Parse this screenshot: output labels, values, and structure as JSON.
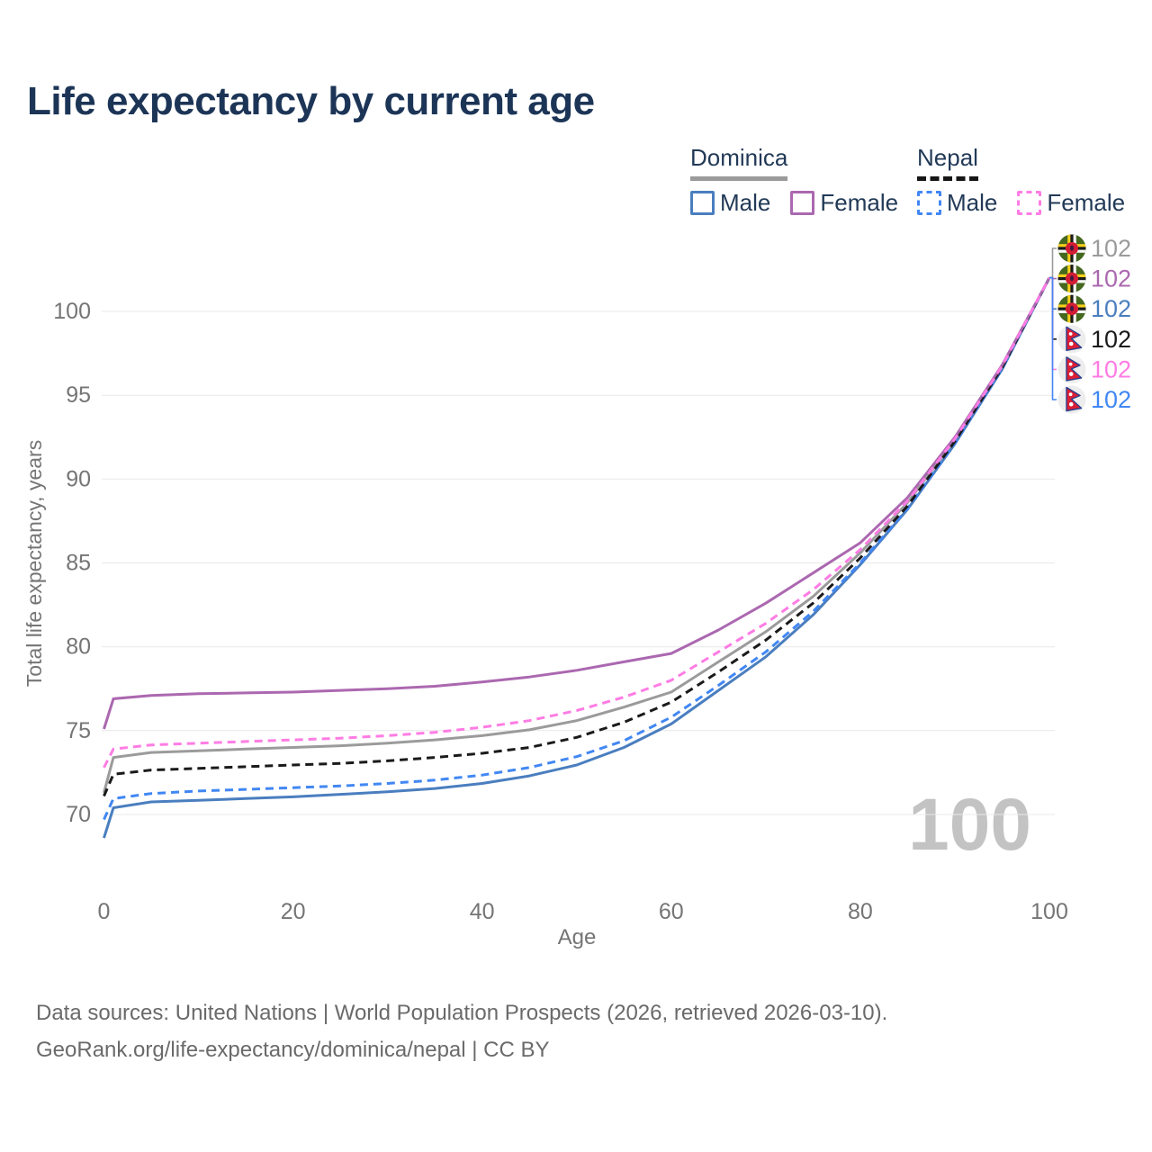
{
  "title": "Life expectancy by current age",
  "watermark": "100",
  "legend": {
    "groups": [
      {
        "id": "dominica",
        "label": "Dominica",
        "line_color": "#9b9b9b",
        "line_style": "solid",
        "items": [
          {
            "id": "dominica-male",
            "label": "Male",
            "color": "#4a7ebf",
            "style": "solid"
          },
          {
            "id": "dominica-female",
            "label": "Female",
            "color": "#ab68b0",
            "style": "solid"
          }
        ]
      },
      {
        "id": "nepal",
        "label": "Nepal",
        "line_color": "#161616",
        "line_style": "dashed",
        "items": [
          {
            "id": "nepal-male",
            "label": "Male",
            "color": "#4187f4",
            "style": "dashed"
          },
          {
            "id": "nepal-female",
            "label": "Female",
            "color": "#ff7ce4",
            "style": "dashed"
          }
        ]
      }
    ]
  },
  "chart_data": {
    "type": "line",
    "title": "Life expectancy by current age",
    "xlabel": "Age",
    "ylabel": "Total life expectancy, years",
    "x_ticks": [
      0,
      20,
      40,
      60,
      80,
      100
    ],
    "y_ticks": [
      70,
      75,
      80,
      85,
      90,
      95,
      100
    ],
    "xlim": [
      0,
      100
    ],
    "ylim": [
      68,
      103
    ],
    "grid": "horizontal",
    "legend_position": "top-right",
    "gridline_color": "#e9e9e9",
    "tick_color": "#757575",
    "watermark_color": "#c3c3c3",
    "ages": [
      0,
      1,
      5,
      10,
      15,
      20,
      25,
      30,
      35,
      40,
      45,
      50,
      55,
      60,
      65,
      70,
      75,
      80,
      85,
      90,
      95,
      100
    ],
    "series": [
      {
        "id": "dominica",
        "label": "Dominica",
        "country": "Dominica",
        "sex": "all",
        "color": "#9b9b9b",
        "dashed": false,
        "flag": "dominica",
        "end_label": "102",
        "row": 0,
        "z": 0,
        "values": [
          71.3,
          73.4,
          73.7,
          73.8,
          73.9,
          74.0,
          74.1,
          74.25,
          74.45,
          74.7,
          75.05,
          75.6,
          76.4,
          77.3,
          79.1,
          80.9,
          83.0,
          85.6,
          88.6,
          92.35,
          96.7,
          102
        ]
      },
      {
        "id": "dominica-female",
        "label": "Female",
        "country": "Dominica",
        "sex": "female",
        "color": "#ab68b0",
        "dashed": false,
        "flag": "dominica",
        "end_label": "102",
        "row": 1,
        "z": 4,
        "values": [
          75.1,
          76.9,
          77.1,
          77.2,
          77.25,
          77.3,
          77.4,
          77.5,
          77.65,
          77.9,
          78.2,
          78.6,
          79.1,
          79.6,
          81.0,
          82.6,
          84.4,
          86.2,
          88.9,
          92.5,
          96.8,
          102
        ]
      },
      {
        "id": "dominica-male",
        "label": "Male",
        "country": "Dominica",
        "sex": "male",
        "color": "#4a7ebf",
        "dashed": false,
        "flag": "dominica",
        "end_label": "102",
        "row": 2,
        "z": 1,
        "values": [
          68.6,
          70.4,
          70.75,
          70.85,
          70.95,
          71.05,
          71.2,
          71.35,
          71.55,
          71.85,
          72.3,
          72.95,
          74.0,
          75.4,
          77.4,
          79.4,
          81.9,
          84.9,
          88.2,
          92.1,
          96.55,
          102
        ]
      },
      {
        "id": "nepal",
        "label": "Nepal",
        "country": "Nepal",
        "sex": "all",
        "color": "#1a1a1a",
        "dashed": true,
        "flag": "nepal",
        "end_label": "102",
        "row": 3,
        "z": 3,
        "values": [
          71.1,
          72.4,
          72.65,
          72.75,
          72.85,
          72.95,
          73.05,
          73.2,
          73.4,
          73.65,
          74.0,
          74.6,
          75.5,
          76.7,
          78.5,
          80.4,
          82.6,
          85.3,
          88.4,
          92.25,
          96.65,
          102
        ]
      },
      {
        "id": "nepal-female",
        "label": "Female",
        "country": "Nepal",
        "sex": "female",
        "color": "#ff7ce4",
        "dashed": true,
        "flag": "nepal",
        "end_label": "102",
        "row": 4,
        "z": 5,
        "values": [
          72.8,
          73.9,
          74.15,
          74.25,
          74.35,
          74.45,
          74.55,
          74.7,
          74.9,
          75.2,
          75.6,
          76.2,
          77.0,
          78.0,
          79.7,
          81.4,
          83.4,
          85.8,
          88.7,
          92.4,
          96.75,
          102
        ]
      },
      {
        "id": "nepal-male",
        "label": "Male",
        "country": "Nepal",
        "sex": "male",
        "color": "#4187f4",
        "dashed": true,
        "flag": "nepal",
        "end_label": "102",
        "row": 5,
        "z": 2,
        "values": [
          69.7,
          70.95,
          71.25,
          71.4,
          71.5,
          71.6,
          71.7,
          71.85,
          72.05,
          72.35,
          72.8,
          73.45,
          74.4,
          75.8,
          77.7,
          79.7,
          82.1,
          85.0,
          88.25,
          92.15,
          96.6,
          102
        ]
      }
    ]
  },
  "footer": {
    "line1": "Data sources: United Nations | World Population Prospects (2026, retrieved 2026-03-10).",
    "line2": "GeoRank.org/life-expectancy/dominica/nepal | CC BY"
  }
}
